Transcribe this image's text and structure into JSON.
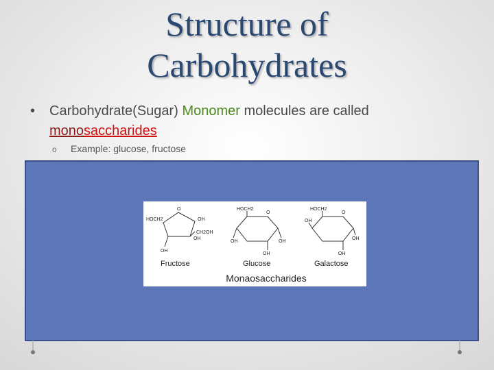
{
  "title": [
    "Structure of",
    "Carbohydrates"
  ],
  "bullet": {
    "parts": [
      "Carbohydrate(Sugar) ",
      "Monomer",
      " molecules are called"
    ],
    "term": [
      "mono",
      "saccharides"
    ]
  },
  "sub_bullet": {
    "marker": "o",
    "text": "Example: glucose, fructose"
  },
  "figure": {
    "structures": [
      {
        "name": "Fructose",
        "atoms": [
          "HOCH2",
          "O",
          "OH",
          "CH2OH",
          "OH",
          "OH"
        ]
      },
      {
        "name": "Glucose",
        "atoms": [
          "HOCH2",
          "O",
          "OH",
          "OH",
          "OH"
        ]
      },
      {
        "name": "Galactose",
        "atoms": [
          "HOCH2",
          "O",
          "OH",
          "OH",
          "OH"
        ]
      }
    ],
    "caption": "Monaosaccharides"
  }
}
